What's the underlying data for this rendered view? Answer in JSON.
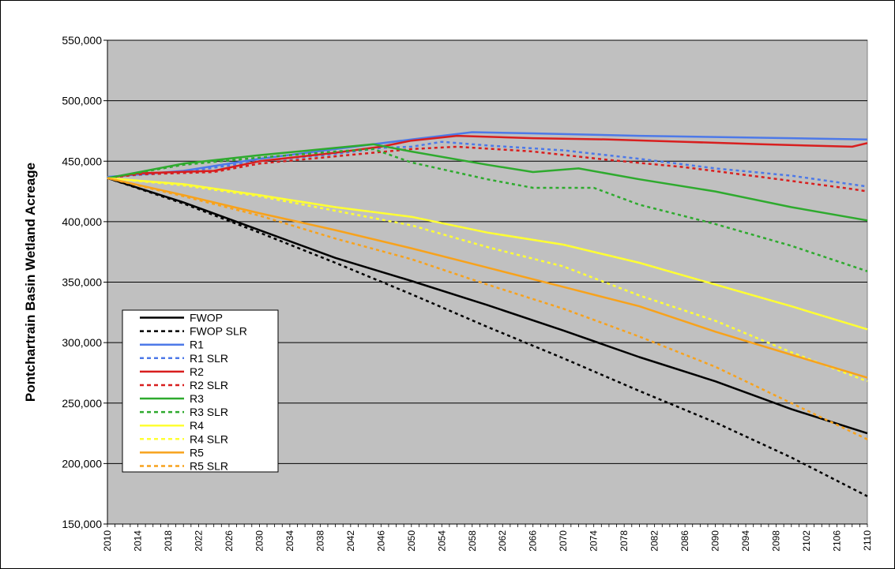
{
  "chart_data": {
    "type": "line",
    "xlabel": "",
    "ylabel": "Pontchartrain Basin Wetland Acreage",
    "xlim": [
      2010,
      2110
    ],
    "ylim": [
      150000,
      550000
    ],
    "grid": true,
    "legend_position": "bottom-left",
    "plot_background": "#c0c0c0",
    "x_ticks": [
      "2010",
      "2014",
      "2018",
      "2022",
      "2026",
      "2030",
      "2034",
      "2038",
      "2042",
      "2046",
      "2050",
      "2054",
      "2058",
      "2062",
      "2066",
      "2070",
      "2074",
      "2078",
      "2082",
      "2086",
      "2090",
      "2094",
      "2098",
      "2102",
      "2106",
      "2110"
    ],
    "y_ticks": [
      "150,000",
      "200,000",
      "250,000",
      "300,000",
      "350,000",
      "400,000",
      "450,000",
      "500,000",
      "550,000"
    ],
    "y_tick_values": [
      150000,
      200000,
      250000,
      300000,
      350000,
      400000,
      450000,
      500000,
      550000
    ],
    "series": [
      {
        "name": "FWOP",
        "color": "#000000",
        "dashed": false,
        "points": [
          [
            2010,
            436000
          ],
          [
            2020,
            416000
          ],
          [
            2030,
            393000
          ],
          [
            2040,
            370000
          ],
          [
            2050,
            351000
          ],
          [
            2060,
            331000
          ],
          [
            2070,
            310000
          ],
          [
            2080,
            288000
          ],
          [
            2090,
            268000
          ],
          [
            2100,
            245000
          ],
          [
            2110,
            225000
          ]
        ]
      },
      {
        "name": "FWOP SLR",
        "color": "#000000",
        "dashed": true,
        "points": [
          [
            2010,
            436000
          ],
          [
            2020,
            415000
          ],
          [
            2030,
            391000
          ],
          [
            2040,
            366000
          ],
          [
            2050,
            340000
          ],
          [
            2060,
            313000
          ],
          [
            2070,
            287000
          ],
          [
            2080,
            260000
          ],
          [
            2090,
            234000
          ],
          [
            2100,
            205000
          ],
          [
            2110,
            173000
          ]
        ]
      },
      {
        "name": "R1",
        "color": "#4d79e8",
        "dashed": false,
        "points": [
          [
            2010,
            437000
          ],
          [
            2020,
            442000
          ],
          [
            2030,
            452000
          ],
          [
            2040,
            460000
          ],
          [
            2050,
            468000
          ],
          [
            2058,
            474000
          ],
          [
            2066,
            473000
          ],
          [
            2080,
            471000
          ],
          [
            2090,
            470000
          ],
          [
            2100,
            469000
          ],
          [
            2110,
            468000
          ]
        ]
      },
      {
        "name": "R1 SLR",
        "color": "#4d79e8",
        "dashed": true,
        "points": [
          [
            2010,
            437000
          ],
          [
            2020,
            441000
          ],
          [
            2030,
            450000
          ],
          [
            2040,
            456000
          ],
          [
            2046,
            461000
          ],
          [
            2050,
            462000
          ],
          [
            2054,
            466000
          ],
          [
            2060,
            463000
          ],
          [
            2070,
            459000
          ],
          [
            2080,
            452000
          ],
          [
            2090,
            444000
          ],
          [
            2100,
            438000
          ],
          [
            2110,
            429000
          ]
        ]
      },
      {
        "name": "R2",
        "color": "#d81e1e",
        "dashed": false,
        "points": [
          [
            2010,
            436000
          ],
          [
            2014,
            440000
          ],
          [
            2024,
            442000
          ],
          [
            2030,
            450000
          ],
          [
            2040,
            457000
          ],
          [
            2046,
            462000
          ],
          [
            2050,
            467000
          ],
          [
            2056,
            471000
          ],
          [
            2066,
            469000
          ],
          [
            2076,
            468000
          ],
          [
            2086,
            466000
          ],
          [
            2096,
            464000
          ],
          [
            2108,
            462000
          ],
          [
            2110,
            465000
          ]
        ]
      },
      {
        "name": "R2 SLR",
        "color": "#d81e1e",
        "dashed": true,
        "points": [
          [
            2010,
            436000
          ],
          [
            2014,
            439000
          ],
          [
            2024,
            441000
          ],
          [
            2030,
            448000
          ],
          [
            2040,
            454000
          ],
          [
            2050,
            460000
          ],
          [
            2056,
            462000
          ],
          [
            2066,
            458000
          ],
          [
            2076,
            451000
          ],
          [
            2086,
            445000
          ],
          [
            2096,
            437000
          ],
          [
            2108,
            427000
          ],
          [
            2110,
            425000
          ]
        ]
      },
      {
        "name": "R3",
        "color": "#2eaa2e",
        "dashed": false,
        "points": [
          [
            2010,
            436000
          ],
          [
            2020,
            448000
          ],
          [
            2030,
            455000
          ],
          [
            2040,
            461000
          ],
          [
            2045,
            464000
          ],
          [
            2050,
            458000
          ],
          [
            2060,
            447000
          ],
          [
            2066,
            441000
          ],
          [
            2072,
            444000
          ],
          [
            2080,
            435000
          ],
          [
            2090,
            425000
          ],
          [
            2100,
            412000
          ],
          [
            2110,
            401000
          ]
        ]
      },
      {
        "name": "R3 SLR",
        "color": "#2eaa2e",
        "dashed": true,
        "points": [
          [
            2010,
            436000
          ],
          [
            2020,
            447000
          ],
          [
            2030,
            453000
          ],
          [
            2040,
            458000
          ],
          [
            2045,
            460000
          ],
          [
            2050,
            449000
          ],
          [
            2060,
            435000
          ],
          [
            2066,
            428000
          ],
          [
            2074,
            428000
          ],
          [
            2080,
            414000
          ],
          [
            2090,
            398000
          ],
          [
            2100,
            380000
          ],
          [
            2110,
            359000
          ]
        ]
      },
      {
        "name": "R4",
        "color": "#ffff33",
        "dashed": false,
        "points": [
          [
            2010,
            436000
          ],
          [
            2020,
            431000
          ],
          [
            2030,
            422000
          ],
          [
            2040,
            412000
          ],
          [
            2050,
            404000
          ],
          [
            2060,
            391000
          ],
          [
            2070,
            381000
          ],
          [
            2080,
            366000
          ],
          [
            2090,
            348000
          ],
          [
            2100,
            330000
          ],
          [
            2110,
            311000
          ]
        ]
      },
      {
        "name": "R4 SLR",
        "color": "#ffff33",
        "dashed": true,
        "points": [
          [
            2010,
            436000
          ],
          [
            2020,
            430000
          ],
          [
            2030,
            421000
          ],
          [
            2040,
            409000
          ],
          [
            2050,
            397000
          ],
          [
            2060,
            379000
          ],
          [
            2070,
            363000
          ],
          [
            2080,
            339000
          ],
          [
            2090,
            318000
          ],
          [
            2100,
            292000
          ],
          [
            2110,
            268000
          ]
        ]
      },
      {
        "name": "R5",
        "color": "#f7a21c",
        "dashed": false,
        "points": [
          [
            2010,
            436000
          ],
          [
            2020,
            422000
          ],
          [
            2030,
            407000
          ],
          [
            2040,
            393000
          ],
          [
            2050,
            378000
          ],
          [
            2060,
            362000
          ],
          [
            2070,
            346000
          ],
          [
            2080,
            330000
          ],
          [
            2090,
            309000
          ],
          [
            2100,
            290000
          ],
          [
            2110,
            271000
          ]
        ]
      },
      {
        "name": "R5 SLR",
        "color": "#f7a21c",
        "dashed": true,
        "points": [
          [
            2010,
            436000
          ],
          [
            2020,
            421000
          ],
          [
            2030,
            405000
          ],
          [
            2040,
            386000
          ],
          [
            2050,
            369000
          ],
          [
            2060,
            348000
          ],
          [
            2070,
            328000
          ],
          [
            2080,
            305000
          ],
          [
            2090,
            280000
          ],
          [
            2100,
            250000
          ],
          [
            2110,
            220000
          ]
        ]
      }
    ]
  }
}
